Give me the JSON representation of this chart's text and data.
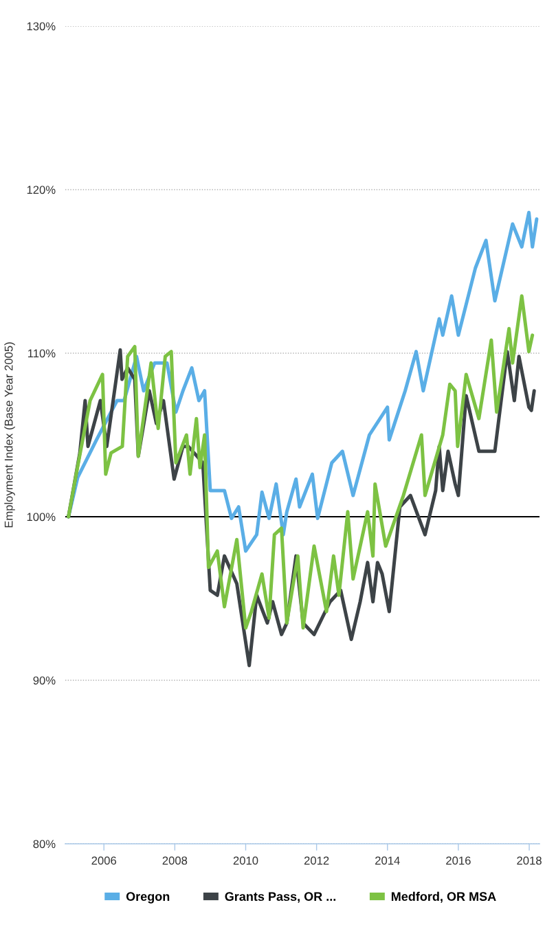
{
  "chart_data": {
    "type": "line",
    "ylabel": "Employment Index (Base Year 2005)",
    "xlim": [
      2004.91,
      2018.29
    ],
    "xticks": [
      2006,
      2008,
      2010,
      2012,
      2014,
      2016,
      2018
    ],
    "ylim": [
      80,
      130
    ],
    "yticks": [
      {
        "value": 80,
        "label": "80%"
      },
      {
        "value": 90,
        "label": "90%"
      },
      {
        "value": 100,
        "label": "100%"
      },
      {
        "value": 110,
        "label": "110%"
      },
      {
        "value": 120,
        "label": "120%"
      },
      {
        "value": 130,
        "label": "130%"
      }
    ],
    "grid": "y",
    "legend": "bottom",
    "ref_lines": [
      {
        "axis": "y",
        "value": 100,
        "color": "#000000",
        "line_style": "solid"
      }
    ],
    "series": [
      {
        "name": "Oregon",
        "color": "#5aaee6",
        "x": [
          2005.0,
          2005.26,
          2005.79,
          2006.37,
          2006.57,
          2006.92,
          2007.12,
          2007.43,
          2007.78,
          2008.03,
          2008.23,
          2008.48,
          2008.68,
          2008.84,
          2009.0,
          2009.4,
          2009.6,
          2009.8,
          2010.0,
          2010.31,
          2010.46,
          2010.66,
          2010.86,
          2011.06,
          2011.16,
          2011.42,
          2011.52,
          2011.88,
          2012.03,
          2012.43,
          2012.73,
          2013.03,
          2013.49,
          2014.0,
          2014.05,
          2014.5,
          2014.81,
          2015.01,
          2015.46,
          2015.56,
          2015.81,
          2016.0,
          2016.48,
          2016.78,
          2017.03,
          2017.53,
          2017.79,
          2017.99,
          2018.09,
          2018.21
        ],
        "values": [
          100,
          102.4,
          104.7,
          107.1,
          107.1,
          109.8,
          107.7,
          109.4,
          109.4,
          106.4,
          107.7,
          109.1,
          107.1,
          107.7,
          101.6,
          101.6,
          99.9,
          100.6,
          97.9,
          98.9,
          101.5,
          99.9,
          102.0,
          98.9,
          100.3,
          102.3,
          100.6,
          102.6,
          99.9,
          103.3,
          104.0,
          101.3,
          105.0,
          106.7,
          104.7,
          107.7,
          110.1,
          107.7,
          112.1,
          111.1,
          113.5,
          111.1,
          115.2,
          116.9,
          113.2,
          117.9,
          116.5,
          118.6,
          116.5,
          118.2
        ]
      },
      {
        "name": "Grants Pass, OR ...",
        "color": "#3d4347",
        "x": [
          2005.0,
          2005.32,
          2005.47,
          2005.55,
          2005.9,
          2006.08,
          2006.46,
          2006.51,
          2006.67,
          2006.87,
          2006.97,
          2007.28,
          2007.48,
          2007.68,
          2007.98,
          2008.23,
          2008.38,
          2008.79,
          2009.0,
          2009.2,
          2009.4,
          2009.75,
          2010.1,
          2010.31,
          2010.61,
          2010.76,
          2011.01,
          2011.16,
          2011.42,
          2011.62,
          2011.93,
          2012.38,
          2012.68,
          2012.98,
          2013.23,
          2013.44,
          2013.59,
          2013.72,
          2013.85,
          2014.05,
          2014.35,
          2014.65,
          2015.06,
          2015.36,
          2015.46,
          2015.56,
          2015.71,
          2015.91,
          2016.0,
          2016.22,
          2016.58,
          2017.03,
          2017.38,
          2017.58,
          2017.71,
          2017.99,
          2018.06,
          2018.14
        ],
        "values": [
          100,
          103.9,
          107.1,
          104.3,
          107.1,
          104.3,
          110.2,
          108.4,
          109.1,
          108.4,
          103.7,
          107.7,
          105.7,
          107.1,
          102.3,
          104.3,
          104.3,
          103.3,
          95.5,
          95.2,
          97.6,
          95.9,
          90.9,
          95.2,
          93.5,
          94.8,
          92.8,
          93.5,
          97.6,
          93.5,
          92.8,
          94.8,
          95.5,
          92.5,
          94.8,
          97.2,
          94.8,
          97.2,
          96.5,
          94.2,
          100.6,
          101.3,
          98.9,
          101.6,
          104.3,
          101.6,
          104.0,
          102.0,
          101.3,
          107.4,
          104.0,
          104.0,
          110.1,
          107.1,
          109.8,
          106.7,
          106.5,
          107.7
        ]
      },
      {
        "name": "Medford, OR MSA",
        "color": "#7dc243",
        "x": [
          2005.0,
          2005.2,
          2005.61,
          2005.96,
          2006.05,
          2006.2,
          2006.52,
          2006.67,
          2006.87,
          2006.97,
          2007.33,
          2007.53,
          2007.73,
          2007.9,
          2008.03,
          2008.33,
          2008.43,
          2008.61,
          2008.71,
          2008.84,
          2008.95,
          2009.2,
          2009.4,
          2009.75,
          2010.0,
          2010.16,
          2010.46,
          2010.66,
          2010.81,
          2011.01,
          2011.16,
          2011.47,
          2011.62,
          2011.93,
          2012.28,
          2012.48,
          2012.63,
          2012.88,
          2013.03,
          2013.44,
          2013.59,
          2013.65,
          2013.95,
          2014.45,
          2014.96,
          2015.06,
          2015.56,
          2015.76,
          2015.91,
          2015.98,
          2016.22,
          2016.58,
          2016.93,
          2017.08,
          2017.43,
          2017.53,
          2017.79,
          2017.99,
          2018.09
        ],
        "values": [
          100,
          102.4,
          107.1,
          108.7,
          102.6,
          103.9,
          104.3,
          109.8,
          110.4,
          103.7,
          109.4,
          105.4,
          109.8,
          110.1,
          103.3,
          105.0,
          102.6,
          106.0,
          103.0,
          105.0,
          96.9,
          97.9,
          94.5,
          98.6,
          93.2,
          94.2,
          96.5,
          93.8,
          98.9,
          99.3,
          93.5,
          97.6,
          93.2,
          98.2,
          94.2,
          97.6,
          95.2,
          100.3,
          96.2,
          100.3,
          97.6,
          102.0,
          98.2,
          101.3,
          105.0,
          101.3,
          105.0,
          108.1,
          107.7,
          104.3,
          108.7,
          106.0,
          110.8,
          106.4,
          111.5,
          109.4,
          113.5,
          110.1,
          111.1
        ]
      }
    ]
  }
}
